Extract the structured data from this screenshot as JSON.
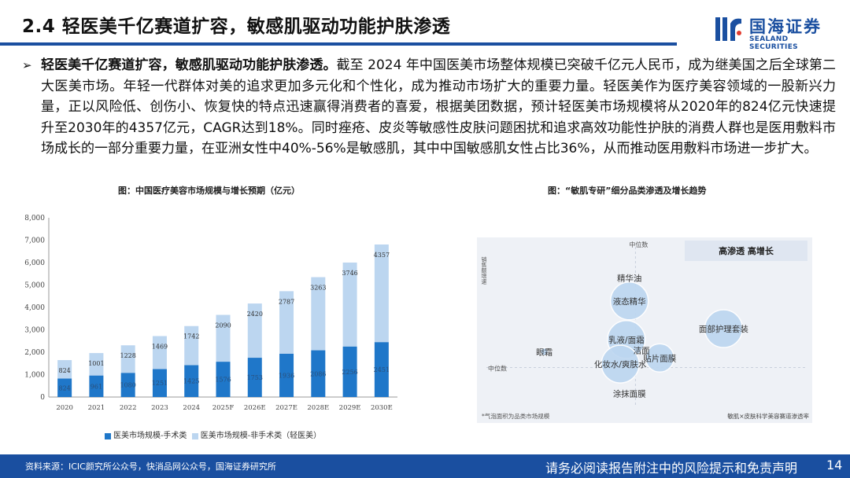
{
  "header": {
    "title": "2.4 轻医美千亿赛道扩容，敏感肌驱动功能护肤渗透",
    "logo_cn": "国海证券",
    "logo_en": "SEALAND SECURITIES"
  },
  "body": {
    "bullet": "➢",
    "lead": "轻医美千亿赛道扩容，敏感肌驱动功能护肤渗透。",
    "text": "截至 2024 年中国医美市场整体规模已突破千亿元人民币，成为继美国之后全球第二大医美市场。年轻一代群体对美的追求更加多元化和个性化，成为推动市场扩大的重要力量。轻医美作为医疗美容领域的一股新兴力量，正以风险低、创伤小、恢复快的特点迅速赢得消费者的喜爱，根据美团数据，预计轻医美市场规模将从2020年的824亿元快速提升至2030年的4357亿元，CAGR达到18%。同时痤疮、皮炎等敏感性皮肤问题困扰和追求高效功能性护肤的消费人群也是医用敷料市场成长的一部分重要力量，在亚洲女性中40%-56%是敏感肌，其中中国敏感肌女性占比36%，从而推动医用敷料市场进一步扩大。"
  },
  "captions": {
    "left": "图：中国医疗美容市场规模与增长预期（亿元）",
    "right": "图：“敏肌专研”细分品类渗透及增长趋势"
  },
  "chart_data": [
    {
      "type": "bar",
      "stacked": true,
      "categories": [
        "2020",
        "2021",
        "2022",
        "2023",
        "2024",
        "2025F",
        "2026E",
        "2027E",
        "2028E",
        "2029E",
        "2030E"
      ],
      "series": [
        {
          "name": "医美市场规模-手术类",
          "color": "#1f77c9",
          "values": [
            824,
            961,
            1080,
            1251,
            1425,
            1576,
            1753,
            1936,
            2086,
            2256,
            2451
          ]
        },
        {
          "name": "医美市场规模-非手术类（轻医美）",
          "color": "#bcd6f0",
          "values": [
            824,
            1001,
            1228,
            1469,
            1742,
            2090,
            2420,
            2787,
            3263,
            3746,
            4357
          ]
        }
      ],
      "yticks": [
        "0",
        "1,000",
        "2,000",
        "3,000",
        "4,000",
        "5,000",
        "6,000",
        "7,000",
        "8,000"
      ],
      "ylim": [
        0,
        8000
      ],
      "grid": false,
      "legend": "bottom"
    },
    {
      "type": "scatter",
      "corner_label": "高渗透 高增长",
      "axis_x_label": "敏肌×皮肤科学美容赛道渗透率",
      "axis_y_label": "销售额增速",
      "median_x_label": "中位数",
      "median_y_label": "中位数",
      "note": "*气泡面积为品类市场规模",
      "points": [
        {
          "label": "精华油",
          "x": 0.45,
          "y": 0.84,
          "size": 0
        },
        {
          "label": "液态精华",
          "x": 0.45,
          "y": 0.69,
          "size": 3
        },
        {
          "label": "乳液/面霜",
          "x": 0.44,
          "y": 0.44,
          "size": 3
        },
        {
          "label": "洁面",
          "x": 0.49,
          "y": 0.37,
          "size": 0
        },
        {
          "label": "面部护理套装",
          "x": 0.76,
          "y": 0.51,
          "size": 3
        },
        {
          "label": "眼霜",
          "x": 0.17,
          "y": 0.36,
          "size": 1
        },
        {
          "label": "化妆水/爽肤水",
          "x": 0.42,
          "y": 0.28,
          "size": 3
        },
        {
          "label": "贴片面膜",
          "x": 0.55,
          "y": 0.32,
          "size": 2
        },
        {
          "label": "涂抹面膜",
          "x": 0.45,
          "y": 0.09,
          "size": 0
        }
      ],
      "colors": {
        "bubble": "#bcd6f0",
        "bubble_stroke": "#ffffff",
        "label": "#333333",
        "box": "#dfe6f1"
      }
    }
  ],
  "footer": {
    "source": "资料来源：ICIC颜究所公众号，快消品网公众号，国海证券研究所",
    "disclaimer": "请务必阅读报告附注中的风险提示和免责声明",
    "page": "14"
  },
  "colors": {
    "brand": "#1a4fa0",
    "bar_dark": "#1f77c9",
    "bar_light": "#bcd6f0"
  }
}
